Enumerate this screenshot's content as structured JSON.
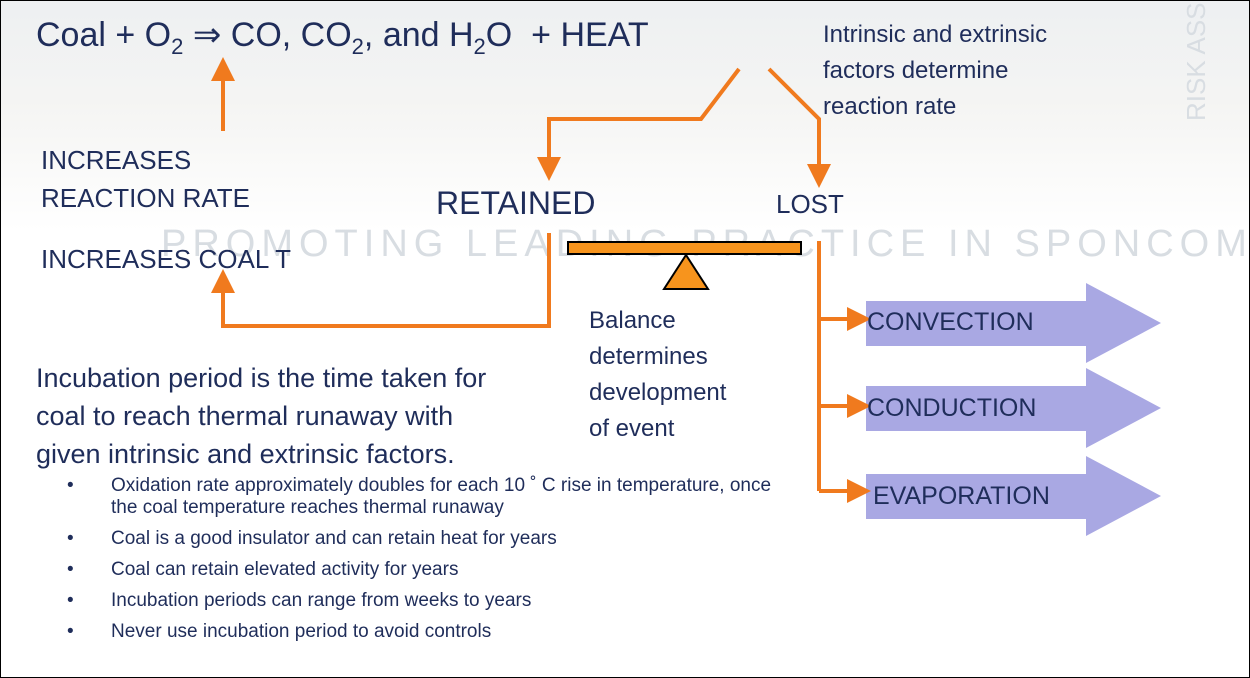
{
  "equation": [
    {
      "text": "Coal + O"
    },
    {
      "sub": "2"
    },
    {
      "text": " ⇒ "
    },
    {
      "text": "CO, CO"
    },
    {
      "sub": "2"
    },
    {
      "text": ", and H"
    },
    {
      "sub": "2"
    },
    {
      "text": "O  + HEAT"
    }
  ],
  "watermark": {
    "tagline": "PROMOTING LEADING PRACTICE IN SPONCOM",
    "side": "RISK ASSESSM"
  },
  "factors_note": [
    "Intrinsic and extrinsic",
    "factors determine",
    "reaction rate"
  ],
  "increases_rate": [
    "INCREASES",
    "REACTION RATE"
  ],
  "increases_temp": "INCREASES COAL T",
  "retained": "RETAINED",
  "lost": "LOST",
  "balance": [
    "Balance",
    "determines",
    "development",
    "of event"
  ],
  "heat_losses": [
    "CONVECTION",
    "CONDUCTION",
    "EVAPORATION"
  ],
  "incubation": [
    "Incubation period is the time taken for",
    "coal to reach thermal runaway with",
    "given intrinsic and extrinsic factors."
  ],
  "bullets": [
    "Oxidation rate approximately doubles for each 10 ˚ C rise in temperature, once the coal temperature reaches thermal runaway",
    "Coal is a good insulator and can retain heat for years",
    "Coal can retain elevated activity for years",
    "Incubation periods can range from weeks to years",
    "Never use incubation period to avoid controls"
  ]
}
